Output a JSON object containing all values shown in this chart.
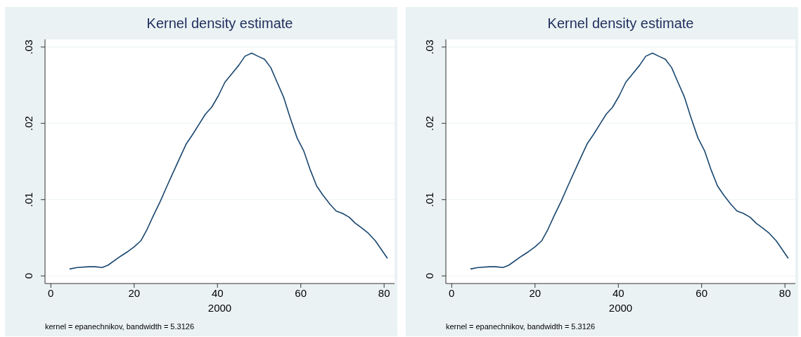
{
  "chart_data": [
    {
      "type": "line",
      "title": "Kernel density estimate",
      "xlabel": "2000",
      "annotations": [
        "kernel = epanechnikov, bandwidth = 5.3126"
      ],
      "grid": "y",
      "marker": "none",
      "line_style": "solid",
      "xlim": [
        -1.4,
        82.5
      ],
      "ylim": [
        -0.001,
        0.031
      ],
      "xticks": [
        0,
        20,
        40,
        60,
        80
      ],
      "yticks": [
        0,
        {
          "value": 0.01,
          "label": ".01"
        },
        {
          "value": 0.02,
          "label": ".02"
        },
        {
          "value": 0.03,
          "label": ".03"
        }
      ],
      "x": [
        4.5,
        6.3,
        9.1,
        10.6,
        12.3,
        13.7,
        16.8,
        18.5,
        20,
        21.6,
        23.1,
        24.7,
        26.3,
        27.9,
        29.4,
        30.9,
        32.5,
        34,
        35.6,
        37.1,
        38.6,
        40.2,
        41.8,
        43.6,
        45.1,
        46.6,
        48.2,
        49.7,
        51.3,
        52.8,
        54.3,
        55.9,
        57.4,
        59.1,
        60.7,
        62.2,
        63.8,
        65.3,
        67,
        68.5,
        70,
        71.6,
        73.1,
        74.6,
        76.2,
        77.9,
        80.8
      ],
      "series": [
        {
          "color": "#1a476f",
          "values": [
            0.0009,
            0.0011,
            0.0012,
            0.0012,
            0.0011,
            0.0014,
            0.0026,
            0.0032,
            0.0038,
            0.0046,
            0.0061,
            0.008,
            0.0098,
            0.0118,
            0.0136,
            0.0154,
            0.0173,
            0.0185,
            0.0199,
            0.0212,
            0.0221,
            0.0236,
            0.0254,
            0.0266,
            0.0276,
            0.0288,
            0.0292,
            0.0288,
            0.0284,
            0.0273,
            0.0254,
            0.0234,
            0.0208,
            0.0181,
            0.0164,
            0.014,
            0.0118,
            0.0106,
            0.0094,
            0.0085,
            0.0082,
            0.0077,
            0.0069,
            0.0063,
            0.0056,
            0.0046,
            0.0023
          ]
        }
      ]
    },
    {
      "type": "line",
      "title": "Kernel density estimate",
      "xlabel": "2000",
      "annotations": [
        "kernel = epanechnikov, bandwidth = 5.3126"
      ],
      "grid": "y",
      "marker": "none",
      "line_style": "solid",
      "xlim": [
        -1.4,
        82.5
      ],
      "ylim": [
        -0.001,
        0.031
      ],
      "xticks": [
        0,
        20,
        40,
        60,
        80
      ],
      "yticks": [
        0,
        {
          "value": 0.01,
          "label": ".01"
        },
        {
          "value": 0.02,
          "label": ".02"
        },
        {
          "value": 0.03,
          "label": ".03"
        }
      ],
      "x": [
        4.5,
        6.3,
        9.1,
        10.6,
        12.3,
        13.7,
        16.8,
        18.5,
        20,
        21.6,
        23.1,
        24.7,
        26.3,
        27.9,
        29.4,
        30.9,
        32.5,
        34,
        35.6,
        37.1,
        38.6,
        40.2,
        41.8,
        43.6,
        45.1,
        46.6,
        48.2,
        49.7,
        51.3,
        52.8,
        54.3,
        55.9,
        57.4,
        59.1,
        60.7,
        62.2,
        63.8,
        65.3,
        67,
        68.5,
        70,
        71.6,
        73.1,
        74.6,
        76.2,
        77.9,
        80.8
      ],
      "series": [
        {
          "color": "#1a476f",
          "values": [
            0.0009,
            0.0011,
            0.0012,
            0.0012,
            0.0011,
            0.0014,
            0.0026,
            0.0032,
            0.0038,
            0.0046,
            0.0061,
            0.008,
            0.0098,
            0.0118,
            0.0136,
            0.0154,
            0.0173,
            0.0185,
            0.0199,
            0.0212,
            0.0221,
            0.0236,
            0.0254,
            0.0266,
            0.0276,
            0.0288,
            0.0292,
            0.0288,
            0.0284,
            0.0273,
            0.0254,
            0.0234,
            0.0208,
            0.0181,
            0.0164,
            0.014,
            0.0118,
            0.0106,
            0.0094,
            0.0085,
            0.0082,
            0.0077,
            0.0069,
            0.0063,
            0.0056,
            0.0046,
            0.0023
          ]
        }
      ]
    }
  ]
}
